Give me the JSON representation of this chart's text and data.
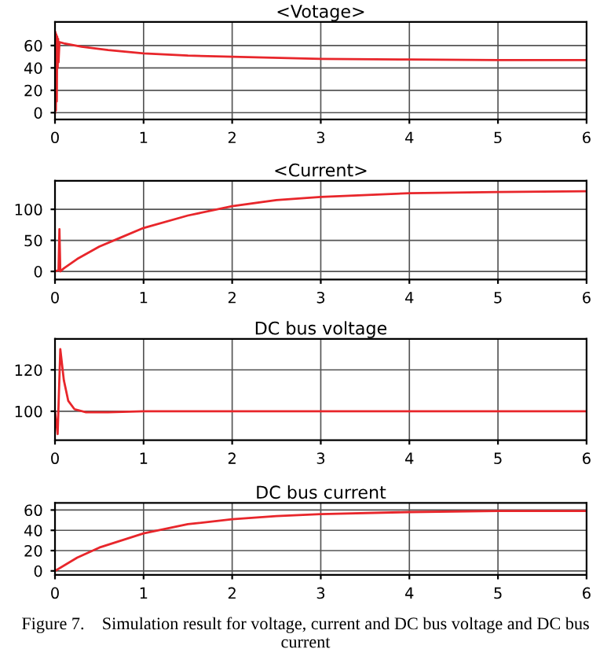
{
  "chart_data": [
    {
      "type": "line",
      "title": "<Votage>",
      "xlim": [
        0,
        6
      ],
      "xticks": [
        0,
        1,
        2,
        3,
        4,
        5,
        6
      ],
      "ylim": [
        -6,
        81
      ],
      "yticks": [
        0,
        20,
        40,
        60
      ],
      "grid": true,
      "legend": false,
      "series": [
        {
          "color": "#e8262b",
          "x": [
            0,
            0.005,
            0.01,
            0.015,
            0.02,
            0.025,
            0.03,
            0.035,
            0.04,
            0.05,
            0.1,
            0.3,
            0.6,
            1,
            1.5,
            2,
            3,
            4,
            5,
            6
          ],
          "values": [
            0,
            72,
            2,
            70,
            10,
            68,
            40,
            66,
            45,
            63,
            62,
            59,
            56,
            53,
            51,
            50,
            48,
            47.5,
            47,
            47
          ]
        }
      ]
    },
    {
      "type": "line",
      "title": "<Current>",
      "xlim": [
        0,
        6
      ],
      "xticks": [
        0,
        1,
        2,
        3,
        4,
        5,
        6
      ],
      "ylim": [
        -13,
        146
      ],
      "yticks": [
        0,
        50,
        100
      ],
      "grid": true,
      "legend": false,
      "series": [
        {
          "color": "#e8262b",
          "x": [
            0,
            0.04,
            0.05,
            0.06,
            0.1,
            0.25,
            0.5,
            0.75,
            1,
            1.5,
            2,
            2.5,
            3,
            4,
            5,
            6
          ],
          "values": [
            0,
            2,
            68,
            0,
            5,
            20,
            40,
            55,
            70,
            90,
            105,
            115,
            120,
            126,
            128,
            129
          ]
        }
      ]
    },
    {
      "type": "line",
      "title": "DC bus voltage",
      "xlim": [
        0,
        6
      ],
      "xticks": [
        0,
        1,
        2,
        3,
        4,
        5,
        6
      ],
      "ylim": [
        86,
        135
      ],
      "yticks": [
        100,
        120
      ],
      "grid": true,
      "legend": false,
      "series": [
        {
          "color": "#e8262b",
          "x": [
            0,
            0.03,
            0.06,
            0.1,
            0.15,
            0.22,
            0.35,
            0.6,
            1,
            2,
            3,
            4,
            5,
            6
          ],
          "values": [
            100,
            89,
            130,
            115,
            105,
            101,
            99.5,
            99.5,
            100,
            100,
            100,
            100,
            100,
            100
          ]
        }
      ]
    },
    {
      "type": "line",
      "title": "DC bus current",
      "xlim": [
        0,
        6
      ],
      "xticks": [
        0,
        1,
        2,
        3,
        4,
        5,
        6
      ],
      "ylim": [
        -4,
        67
      ],
      "yticks": [
        0,
        20,
        40,
        60
      ],
      "grid": true,
      "legend": false,
      "series": [
        {
          "color": "#e8262b",
          "x": [
            0,
            0.25,
            0.5,
            1,
            1.5,
            2,
            2.5,
            3,
            4,
            5,
            6
          ],
          "values": [
            0,
            13,
            23,
            37,
            46,
            51,
            54,
            56,
            58,
            59,
            59
          ]
        }
      ],
      "annotations": [
        "Figure 7.    Simulation result for voltage, current and DC bus voltage and DC bus current"
      ]
    }
  ]
}
